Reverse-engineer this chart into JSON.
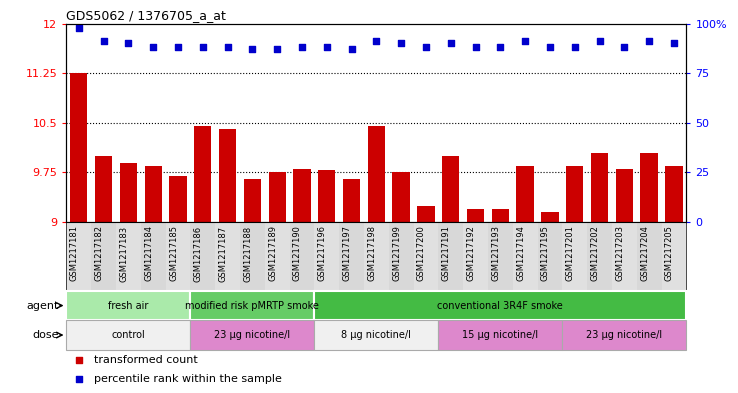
{
  "title": "GDS5062 / 1376705_a_at",
  "samples": [
    "GSM1217181",
    "GSM1217182",
    "GSM1217183",
    "GSM1217184",
    "GSM1217185",
    "GSM1217186",
    "GSM1217187",
    "GSM1217188",
    "GSM1217189",
    "GSM1217190",
    "GSM1217196",
    "GSM1217197",
    "GSM1217198",
    "GSM1217199",
    "GSM1217200",
    "GSM1217191",
    "GSM1217192",
    "GSM1217193",
    "GSM1217194",
    "GSM1217195",
    "GSM1217201",
    "GSM1217202",
    "GSM1217203",
    "GSM1217204",
    "GSM1217205"
  ],
  "bar_values": [
    11.25,
    10.0,
    9.9,
    9.85,
    9.7,
    10.45,
    10.4,
    9.65,
    9.75,
    9.8,
    9.78,
    9.65,
    10.45,
    9.75,
    9.25,
    10.0,
    9.2,
    9.2,
    9.85,
    9.15,
    9.85,
    10.05,
    9.8,
    10.05,
    9.85
  ],
  "dot_values": [
    98,
    91,
    90,
    88,
    88,
    88,
    88,
    87,
    87,
    88,
    88,
    87,
    91,
    90,
    88,
    90,
    88,
    88,
    91,
    88,
    88,
    91,
    88,
    91,
    90
  ],
  "ylim_left": [
    9,
    12
  ],
  "ylim_right": [
    0,
    100
  ],
  "yticks_left": [
    9,
    9.75,
    10.5,
    11.25,
    12
  ],
  "yticks_right": [
    0,
    25,
    50,
    75,
    100
  ],
  "ytick_labels_left": [
    "9",
    "9.75",
    "10.5",
    "11.25",
    "12"
  ],
  "ytick_labels_right": [
    "0",
    "25",
    "50",
    "75",
    "100%"
  ],
  "hlines": [
    9.75,
    10.5,
    11.25
  ],
  "bar_color": "#cc0000",
  "dot_color": "#0000cc",
  "agent_groups": [
    {
      "label": "fresh air",
      "start": 0,
      "end": 5,
      "color": "#aaeaaa"
    },
    {
      "label": "modified risk pMRTP smoke",
      "start": 5,
      "end": 10,
      "color": "#66cc66"
    },
    {
      "label": "conventional 3R4F smoke",
      "start": 10,
      "end": 25,
      "color": "#44bb44"
    }
  ],
  "dose_groups": [
    {
      "label": "control",
      "start": 0,
      "end": 5,
      "color": "#f0f0f0"
    },
    {
      "label": "23 μg nicotine/l",
      "start": 5,
      "end": 10,
      "color": "#dd88cc"
    },
    {
      "label": "8 μg nicotine/l",
      "start": 10,
      "end": 15,
      "color": "#f0f0f0"
    },
    {
      "label": "15 μg nicotine/l",
      "start": 15,
      "end": 20,
      "color": "#dd88cc"
    },
    {
      "label": "23 μg nicotine/l",
      "start": 20,
      "end": 25,
      "color": "#dd88cc"
    }
  ],
  "legend_items": [
    {
      "label": "transformed count",
      "color": "#cc0000",
      "marker": "s"
    },
    {
      "label": "percentile rank within the sample",
      "color": "#0000cc",
      "marker": "s"
    }
  ],
  "agent_label": "agent",
  "dose_label": "dose",
  "plot_bg": "#ffffff",
  "label_area_bg": "#d8d8d8",
  "fig_bg": "#ffffff"
}
